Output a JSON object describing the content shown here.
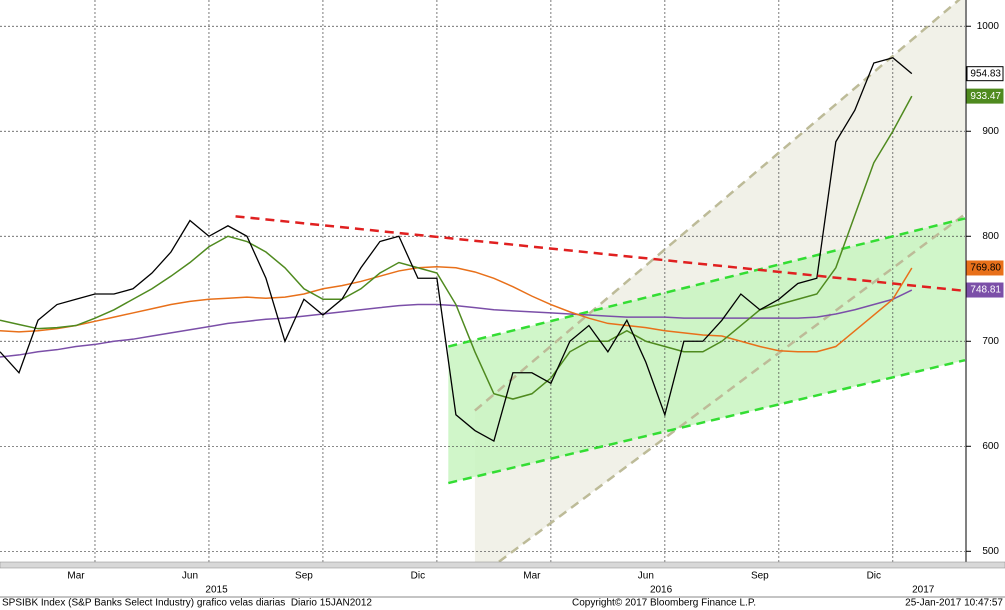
{
  "chart_data": {
    "type": "line",
    "xlim": [
      0.5,
      25.9
    ],
    "ylim": [
      486,
      1025
    ],
    "yticks": [
      500,
      600,
      700,
      800,
      900,
      1000
    ],
    "xticks": [
      {
        "value": 2.5,
        "label": "Mar"
      },
      {
        "value": 5.5,
        "label": "Jun"
      },
      {
        "value": 8.5,
        "label": "Sep"
      },
      {
        "value": 11.5,
        "label": "Dic"
      },
      {
        "value": 14.5,
        "label": "Mar"
      },
      {
        "value": 17.5,
        "label": "Jun"
      },
      {
        "value": 20.5,
        "label": "Sep"
      },
      {
        "value": 23.5,
        "label": "Dic"
      }
    ],
    "year_ticks": [
      {
        "value": 6.2,
        "label": "2015"
      },
      {
        "value": 17.9,
        "label": "2016"
      },
      {
        "value": 24.8,
        "label": "2017"
      }
    ],
    "xgrid": [
      3,
      6,
      9,
      12,
      15,
      18,
      21,
      24
    ],
    "grid": true,
    "x": [
      0.5,
      1,
      1.5,
      2,
      2.5,
      3,
      3.5,
      4,
      4.5,
      5,
      5.5,
      6,
      6.5,
      7,
      7.5,
      8,
      8.5,
      9,
      9.5,
      10,
      10.5,
      11,
      11.5,
      12,
      12.5,
      13,
      13.5,
      14,
      14.5,
      15,
      15.5,
      16,
      16.5,
      17,
      17.5,
      18,
      18.5,
      19,
      19.5,
      20,
      20.5,
      21,
      21.5,
      22,
      22.5,
      23,
      23.5,
      24,
      24.5
    ],
    "series": [
      {
        "color": "#000000",
        "width": 1.3,
        "values": [
          690,
          670,
          720,
          735,
          740,
          745,
          745,
          750,
          765,
          785,
          815,
          800,
          810,
          800,
          760,
          700,
          740,
          725,
          740,
          770,
          795,
          800,
          760,
          760,
          630,
          615,
          605,
          670,
          670,
          660,
          700,
          715,
          690,
          720,
          680,
          630,
          700,
          700,
          720,
          745,
          730,
          740,
          755,
          760,
          890,
          920,
          965,
          970,
          954.83
        ],
        "end_label": {
          "value": 954.83,
          "label": "954.83"
        },
        "label_bg": "#ffffff",
        "label_fg": "#000000"
      },
      {
        "color": "#4f8a1f",
        "width": 1.5,
        "values": [
          720,
          716,
          712,
          713,
          715,
          722,
          730,
          740,
          750,
          762,
          775,
          790,
          800,
          795,
          785,
          770,
          750,
          740,
          740,
          750,
          765,
          775,
          770,
          765,
          735,
          690,
          650,
          645,
          650,
          665,
          690,
          700,
          700,
          710,
          700,
          695,
          690,
          690,
          700,
          715,
          730,
          735,
          740,
          745,
          770,
          820,
          870,
          900,
          933.47
        ],
        "end_label": {
          "value": 933.47,
          "label": "933.47"
        },
        "label_bg": "#4f8a1f",
        "label_fg": "#ffffff"
      },
      {
        "color": "#e8701a",
        "width": 1.5,
        "values": [
          710,
          709,
          710,
          712,
          715,
          719,
          723,
          727,
          731,
          735,
          738,
          740,
          741,
          742,
          741,
          742,
          745,
          750,
          753,
          757,
          762,
          767,
          770,
          771,
          770,
          766,
          760,
          752,
          743,
          735,
          728,
          722,
          717,
          715,
          713,
          710,
          708,
          706,
          705,
          700,
          695,
          691,
          690,
          690,
          695,
          710,
          725,
          740,
          769.8
        ],
        "end_label": {
          "value": 769.8,
          "label": "769.80"
        },
        "label_bg": "#e8701a",
        "label_fg": "#000000"
      },
      {
        "color": "#7b4fa8",
        "width": 1.5,
        "values": [
          685,
          687,
          690,
          692,
          695,
          697,
          700,
          702,
          705,
          708,
          711,
          714,
          717,
          719,
          721,
          722,
          724,
          726,
          728,
          730,
          732,
          734,
          735,
          735,
          734,
          732,
          730,
          729,
          728,
          727,
          726,
          725,
          724,
          723,
          723,
          723,
          722,
          722,
          722,
          722,
          722,
          722,
          722,
          723,
          726,
          730,
          735,
          740,
          748.81
        ],
        "end_label": {
          "value": 748.81,
          "label": "748.81"
        },
        "label_bg": "#7b4fa8",
        "label_fg": "#ffffff"
      }
    ],
    "trendlines": [
      {
        "color": "#e02020",
        "x": [
          6.7,
          25.9
        ],
        "values": [
          819,
          748
        ]
      }
    ],
    "channels": [
      {
        "fill": "#efeee4",
        "line_color": "#bdbb98",
        "upper": {
          "x": [
            13,
            25.9
          ],
          "values": [
            634,
            1030
          ]
        },
        "lower": {
          "x": [
            13,
            25.9
          ],
          "values": [
            473,
            821
          ]
        }
      },
      {
        "fill": "#c8f5c0",
        "line_color": "#33dd33",
        "upper": {
          "x": [
            12.3,
            25.9
          ],
          "values": [
            695,
            817
          ]
        },
        "lower": {
          "x": [
            12.3,
            25.9
          ],
          "values": [
            565,
            682
          ]
        }
      }
    ]
  },
  "footer": {
    "left": "SPSIBK Index (S&P Banks Select Industry) grafico velas diarias  Diario 15JAN2012",
    "center": "Copyright© 2017 Bloomberg Finance L.P.",
    "right": "25-Jan-2017 10:47:57"
  }
}
